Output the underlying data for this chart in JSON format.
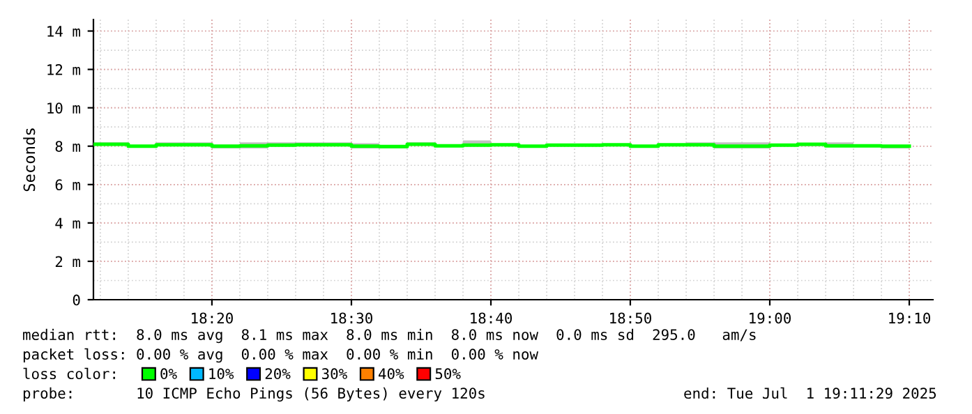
{
  "chart_data": {
    "type": "step",
    "ylabel": "Seconds",
    "x": [
      18.1917,
      18.2333,
      18.2667,
      18.3,
      18.3333,
      18.3667,
      18.4,
      18.4333,
      18.4667,
      18.5,
      18.5333,
      18.5667,
      18.6,
      18.6333,
      18.6667,
      18.7,
      18.7333,
      18.7667,
      18.8,
      18.8333,
      18.8667,
      18.9,
      18.9333,
      18.9667,
      19.0,
      19.0333,
      19.0667,
      19.1,
      19.1333,
      19.1667
    ],
    "series": [
      {
        "name": "0%",
        "color": "#00ff00",
        "values": [
          8.1,
          8.0,
          8.07,
          8.07,
          8.0,
          8.02,
          8.05,
          8.07,
          8.07,
          8.0,
          7.98,
          8.1,
          8.02,
          8.05,
          8.07,
          8.0,
          8.05,
          8.05,
          8.07,
          8.0,
          8.07,
          8.07,
          8.0,
          8.0,
          8.05,
          8.1,
          8.02,
          8.02,
          8.0,
          8.0
        ],
        "lower": [
          8.05,
          8.0,
          8.0,
          8.0,
          7.88,
          7.88,
          8.0,
          8.0,
          8.0,
          7.88,
          7.88,
          8.05,
          8.0,
          8.0,
          8.0,
          8.0,
          8.0,
          8.0,
          8.0,
          8.0,
          8.0,
          8.0,
          7.88,
          7.88,
          8.0,
          8.0,
          8.0,
          8.0,
          7.88,
          7.88
        ],
        "upper": [
          8.2,
          8.05,
          8.2,
          8.2,
          8.07,
          8.2,
          8.2,
          8.2,
          8.2,
          8.15,
          8.02,
          8.2,
          8.1,
          8.3,
          8.1,
          8.05,
          8.07,
          8.07,
          8.1,
          8.05,
          8.1,
          8.2,
          8.2,
          8.2,
          8.07,
          8.1,
          8.2,
          8.05,
          8.02,
          8.02
        ]
      },
      {
        "name": "10%",
        "color": "#00b8ff",
        "values": [
          null,
          null,
          null,
          null,
          null,
          null,
          null,
          null,
          null,
          null,
          null,
          null,
          null,
          null,
          null,
          null,
          null,
          null,
          null,
          null,
          null,
          null,
          null,
          null,
          null,
          null,
          null,
          null,
          null,
          null
        ]
      },
      {
        "name": "20%",
        "color": "#0000ff",
        "values": [
          null,
          null,
          null,
          null,
          null,
          null,
          null,
          null,
          null,
          null,
          null,
          null,
          null,
          null,
          null,
          null,
          null,
          null,
          null,
          null,
          null,
          null,
          null,
          null,
          null,
          null,
          null,
          null,
          null,
          null
        ]
      },
      {
        "name": "30%",
        "color": "#ffff00",
        "values": [
          null,
          null,
          null,
          null,
          null,
          null,
          null,
          null,
          null,
          null,
          null,
          null,
          null,
          null,
          null,
          null,
          null,
          null,
          null,
          null,
          null,
          null,
          null,
          null,
          null,
          null,
          null,
          null,
          null,
          null
        ]
      },
      {
        "name": "40%",
        "color": "#ff8000",
        "values": [
          null,
          null,
          null,
          null,
          null,
          null,
          null,
          null,
          null,
          null,
          null,
          null,
          null,
          null,
          null,
          null,
          null,
          null,
          null,
          null,
          null,
          null,
          null,
          null,
          null,
          null,
          null,
          null,
          null,
          null
        ]
      },
      {
        "name": "50%",
        "color": "#ff0000",
        "values": [
          null,
          null,
          null,
          null,
          null,
          null,
          null,
          null,
          null,
          null,
          null,
          null,
          null,
          null,
          null,
          null,
          null,
          null,
          null,
          null,
          null,
          null,
          null,
          null,
          null,
          null,
          null,
          null,
          null,
          null
        ]
      }
    ],
    "xlim": [
      18.1917,
      19.195
    ],
    "xticks": [
      {
        "value": 18.3333,
        "label": "18:20"
      },
      {
        "value": 18.5,
        "label": "18:30"
      },
      {
        "value": 18.6667,
        "label": "18:40"
      },
      {
        "value": 18.8333,
        "label": "18:50"
      },
      {
        "value": 19.0,
        "label": "19:00"
      },
      {
        "value": 19.1667,
        "label": "19:10"
      }
    ],
    "ylim": [
      0,
      14.6
    ],
    "yticks": [
      0,
      {
        "value": 2,
        "label": "2 m"
      },
      {
        "value": 4,
        "label": "4 m"
      },
      {
        "value": 6,
        "label": "6 m"
      },
      {
        "value": 8,
        "label": "8 m"
      },
      {
        "value": 10,
        "label": "10 m"
      },
      {
        "value": 12,
        "label": "12 m"
      },
      {
        "value": 14,
        "label": "14 m"
      }
    ],
    "grid": true,
    "legend": "bottom",
    "annotations": [
      "median rtt:  8.0 ms avg  8.1 ms max  8.0 ms min  8.0 ms now  0.0 ms sd  295.0   am/s",
      "packet loss: 0.00 % avg  0.00 % max  0.00 % min  0.00 % now",
      "loss color:",
      "probe:       10 ICMP Echo Pings (56 Bytes) every 120s",
      "end: Tue Jul  1 19:11:29 2025"
    ]
  }
}
